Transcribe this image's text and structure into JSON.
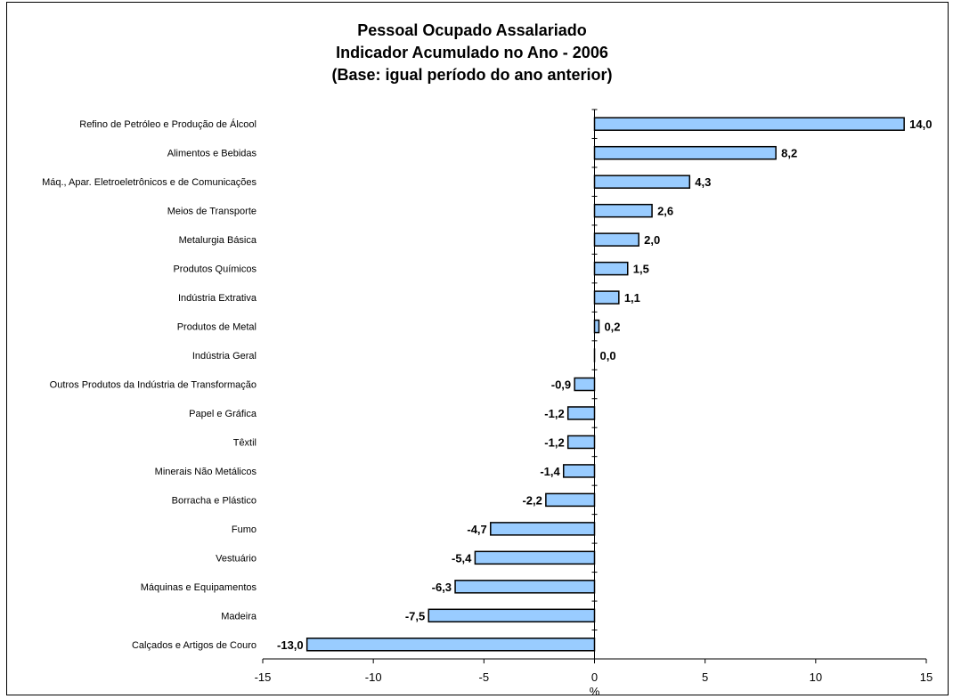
{
  "chart_data": {
    "type": "bar",
    "orientation": "horizontal",
    "title": [
      "Pessoal Ocupado Assalariado",
      "Indicador Acumulado no Ano - 2006",
      "(Base: igual período do ano anterior)"
    ],
    "xlabel": "%",
    "xlim": [
      -15,
      15
    ],
    "xticks": [
      -15,
      -10,
      -5,
      0,
      5,
      10,
      15
    ],
    "categories": [
      "Refino de Petróleo e Produção de Álcool",
      "Alimentos e Bebidas",
      "Máq., Apar. Eletroeletrônicos e de Comunicações",
      "Meios de Transporte",
      "Metalurgia Básica",
      "Produtos Químicos",
      "Indústria Extrativa",
      "Produtos de Metal",
      "Indústria Geral",
      "Outros Produtos da Indústria de Transformação",
      "Papel e Gráfica",
      "Têxtil",
      "Minerais Não Metálicos",
      "Borracha e Plástico",
      "Fumo",
      "Vestuário",
      "Máquinas e Equipamentos",
      "Madeira",
      "Calçados e Artigos de Couro"
    ],
    "values": [
      14.0,
      8.2,
      4.3,
      2.6,
      2.0,
      1.5,
      1.1,
      0.2,
      0.0,
      -0.9,
      -1.2,
      -1.2,
      -1.4,
      -2.2,
      -4.7,
      -5.4,
      -6.3,
      -7.5,
      -13.0
    ],
    "value_labels": [
      "14,0",
      "8,2",
      "4,3",
      "2,6",
      "2,0",
      "1,5",
      "1,1",
      "0,2",
      "0,0",
      "-0,9",
      "-1,2",
      "-1,2",
      "-1,4",
      "-2,2",
      "-4,7",
      "-5,4",
      "-6,3",
      "-7,5",
      "-13,0"
    ],
    "bar_color": "#99ccff",
    "bar_border": "#000000",
    "grid": false,
    "legend": false
  }
}
